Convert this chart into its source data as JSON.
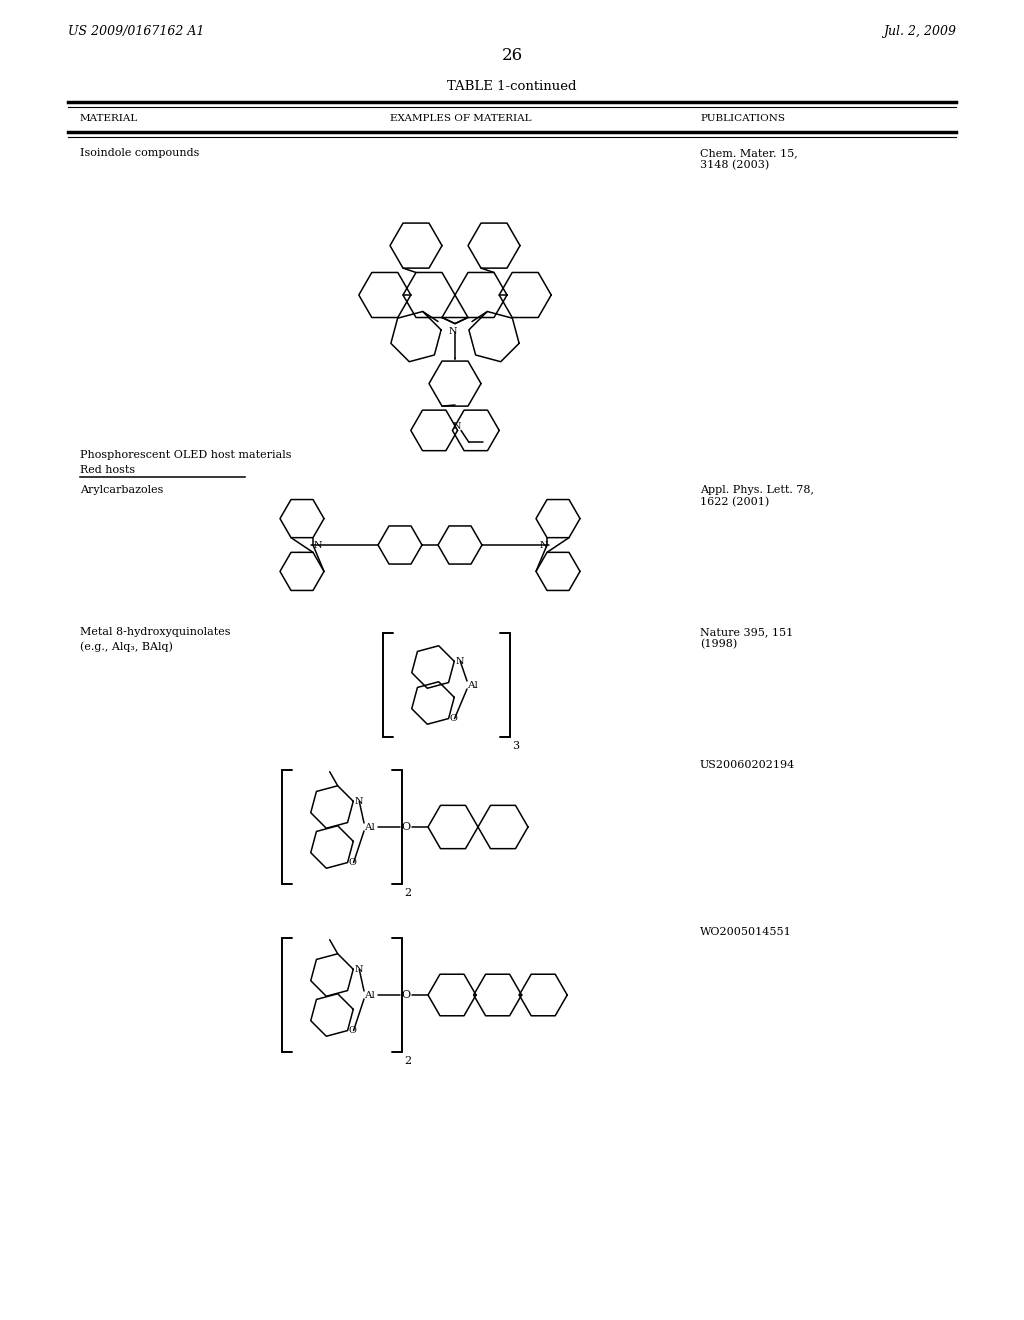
{
  "page_header_left": "US 2009/0167162 A1",
  "page_header_right": "Jul. 2, 2009",
  "page_number": "26",
  "table_title": "TABLE 1-continued",
  "col1_header": "MATERIAL",
  "col2_header": "EXAMPLES OF MATERIAL",
  "col3_header": "PUBLICATIONS",
  "bg_color": "#ffffff",
  "text_color": "#000000",
  "line_color": "#000000"
}
